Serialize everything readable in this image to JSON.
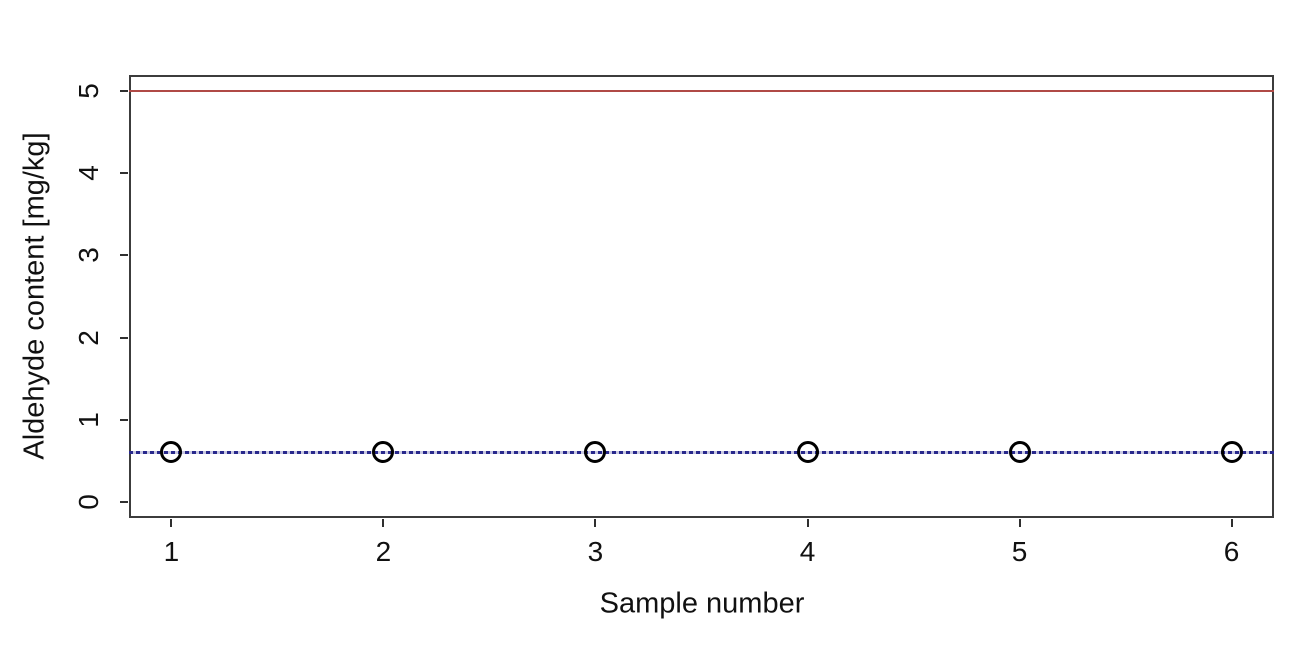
{
  "chart_data": {
    "type": "line",
    "title": "",
    "xlabel": "Sample number",
    "ylabel": "Aldehyde content [mg/kg]",
    "x": [
      1,
      2,
      3,
      4,
      5,
      6
    ],
    "series": [
      {
        "name": "aldehyde-content-samples",
        "values": [
          0.6,
          0.6,
          0.6,
          0.6,
          0.6,
          0.6
        ],
        "marker": "open-circle",
        "marker_color": "#000000"
      }
    ],
    "reference_lines": [
      {
        "name": "upper-limit-line",
        "y": 5,
        "style": "solid",
        "color": "#b04a46"
      },
      {
        "name": "mean-content-line",
        "y": 0.6,
        "style": "dotted",
        "color": "#28288c"
      }
    ],
    "xlim": [
      0.8,
      6.2
    ],
    "ylim": [
      -0.2,
      5.2
    ],
    "x_ticks": [
      1,
      2,
      3,
      4,
      5,
      6
    ],
    "y_ticks": [
      0,
      1,
      2,
      3,
      4,
      5
    ],
    "grid": false,
    "legend": false
  },
  "style": {
    "axis_color": "#3c3c3c",
    "tick_color": "#2f2f2f",
    "text_color": "#111111",
    "background": "#ffffff"
  }
}
